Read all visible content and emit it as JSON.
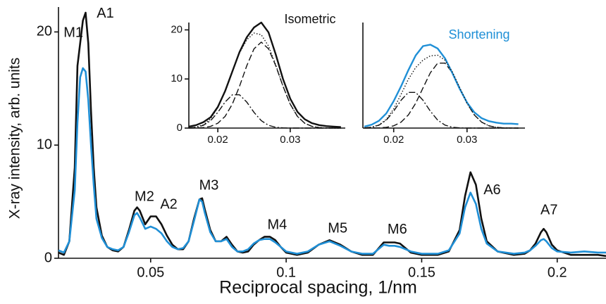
{
  "chart_data": [
    {
      "type": "line",
      "xlabel": "Reciprocal spacing, 1/nm",
      "ylabel": "X-ray intensity, arb. units",
      "xlim": [
        0.016,
        0.218
      ],
      "ylim": [
        0,
        22.2
      ],
      "xticks": [
        0.05,
        0.1,
        0.15,
        0.2
      ],
      "yticks": [
        0,
        10,
        20
      ],
      "x": [
        0.016,
        0.018,
        0.02,
        0.022,
        0.023,
        0.024,
        0.025,
        0.026,
        0.027,
        0.028,
        0.029,
        0.03,
        0.032,
        0.034,
        0.036,
        0.038,
        0.04,
        0.042,
        0.044,
        0.045,
        0.046,
        0.048,
        0.05,
        0.052,
        0.054,
        0.056,
        0.058,
        0.06,
        0.062,
        0.064,
        0.066,
        0.068,
        0.069,
        0.07,
        0.072,
        0.074,
        0.076,
        0.078,
        0.08,
        0.082,
        0.084,
        0.086,
        0.088,
        0.09,
        0.092,
        0.094,
        0.096,
        0.098,
        0.1,
        0.104,
        0.108,
        0.112,
        0.116,
        0.12,
        0.124,
        0.128,
        0.132,
        0.136,
        0.138,
        0.14,
        0.142,
        0.146,
        0.15,
        0.156,
        0.16,
        0.164,
        0.166,
        0.168,
        0.17,
        0.172,
        0.174,
        0.178,
        0.184,
        0.188,
        0.19,
        0.192,
        0.194,
        0.195,
        0.196,
        0.198,
        0.2,
        0.205,
        0.21,
        0.215,
        0.218
      ],
      "series": [
        {
          "color": "#111111",
          "dash": "solid",
          "values": [
            0.5,
            0.3,
            1.5,
            8,
            17,
            19,
            21,
            21.7,
            19,
            13,
            8,
            4.5,
            2,
            1,
            0.7,
            0.6,
            1,
            2.5,
            4.2,
            4.5,
            4.2,
            3,
            3.7,
            3.7,
            3,
            2,
            1.2,
            0.8,
            0.8,
            1.5,
            3.5,
            5.2,
            5.3,
            4.3,
            2.5,
            1.5,
            1.5,
            1.9,
            1.2,
            0.6,
            0.5,
            0.6,
            1.2,
            1.6,
            1.9,
            1.9,
            1.6,
            1,
            0.5,
            0.3,
            0.5,
            1.2,
            1.6,
            1.2,
            0.6,
            0.3,
            0.3,
            1.4,
            1.4,
            1.4,
            1.3,
            0.5,
            0.3,
            0.3,
            0.6,
            2.5,
            5.5,
            7.6,
            6.5,
            3.5,
            1.5,
            0.6,
            0.3,
            0.4,
            0.7,
            1.3,
            2.3,
            2.6,
            2.3,
            1.2,
            0.7,
            0.3,
            0.3,
            0.3,
            0.2
          ]
        },
        {
          "color": "#1f8fd6",
          "dash": "solid",
          "values": [
            0.7,
            0.5,
            1.5,
            6,
            12,
            16,
            16.8,
            16.5,
            14,
            10,
            6.5,
            3.5,
            1.8,
            1,
            0.8,
            0.7,
            1,
            2.3,
            3.8,
            4,
            3.6,
            2.6,
            2.8,
            2.6,
            2.2,
            1.5,
            1,
            0.8,
            0.9,
            1.5,
            3.3,
            5.2,
            5,
            4,
            2.3,
            1.5,
            1.5,
            1.7,
            1,
            0.6,
            0.6,
            0.8,
            1.3,
            1.6,
            1.7,
            1.7,
            1.4,
            1,
            0.6,
            0.4,
            0.6,
            1.2,
            1.5,
            1.1,
            0.6,
            0.4,
            0.4,
            1.2,
            1.1,
            1.1,
            1,
            0.6,
            0.4,
            0.4,
            0.7,
            2.2,
            4.5,
            5.8,
            4.8,
            2.6,
            1.3,
            0.6,
            0.4,
            0.5,
            0.7,
            1.1,
            1.6,
            1.7,
            1.5,
            0.9,
            0.6,
            0.5,
            0.6,
            0.5,
            0.5
          ]
        }
      ],
      "annotations": [
        {
          "text": "M1",
          "x": 0.0215,
          "y": 19.9
        },
        {
          "text": "A1",
          "x": 0.0333,
          "y": 21.6
        },
        {
          "text": "M2",
          "x": 0.0477,
          "y": 5.4
        },
        {
          "text": "A2",
          "x": 0.0567,
          "y": 4.7
        },
        {
          "text": "M3",
          "x": 0.0715,
          "y": 6.4
        },
        {
          "text": "M4",
          "x": 0.0967,
          "y": 2.9
        },
        {
          "text": "M5",
          "x": 0.119,
          "y": 2.6
        },
        {
          "text": "M6",
          "x": 0.141,
          "y": 2.5
        },
        {
          "text": "A6",
          "x": 0.176,
          "y": 6.0
        },
        {
          "text": "A7",
          "x": 0.197,
          "y": 4.2
        }
      ]
    },
    {
      "type": "line",
      "title": "Isometric",
      "title_color": "#111111",
      "xlim": [
        0.016,
        0.0376
      ],
      "ylim": [
        0,
        21.5
      ],
      "xticks": [
        0.02,
        0.03
      ],
      "yticks": [
        0,
        10,
        20
      ],
      "x": [
        0.016,
        0.017,
        0.018,
        0.019,
        0.02,
        0.021,
        0.022,
        0.023,
        0.024,
        0.025,
        0.026,
        0.027,
        0.028,
        0.029,
        0.03,
        0.031,
        0.032,
        0.033,
        0.034,
        0.035,
        0.036,
        0.037
      ],
      "series": [
        {
          "color": "#111111",
          "dash": "dashed",
          "values": [
            0,
            0.03,
            0.1,
            0.35,
            0.98,
            2.37,
            4.87,
            8.52,
            12.7,
            16.15,
            17.5,
            16.15,
            12.7,
            8.52,
            4.87,
            2.37,
            0.98,
            0.35,
            0.1,
            0.03,
            0,
            0
          ]
        },
        {
          "color": "#111111",
          "dash": "dashdot",
          "values": [
            0.04,
            0.16,
            0.56,
            1.51,
            3.2,
            5.29,
            6.78,
            6.78,
            5.29,
            3.2,
            1.51,
            0.56,
            0.16,
            0.04,
            0,
            0,
            0,
            0,
            0,
            0,
            0,
            0
          ]
        },
        {
          "color": "#111111",
          "dash": "dotted",
          "values": [
            0.04,
            0.19,
            0.66,
            1.86,
            4.18,
            7.66,
            11.65,
            15.3,
            17.99,
            19.35,
            19.01,
            16.71,
            12.86,
            8.56,
            4.87,
            2.37,
            0.98,
            0.35,
            0.1,
            0.03,
            0,
            0
          ]
        },
        {
          "color": "#111111",
          "dash": "solid",
          "values": [
            0.3,
            0.6,
            1.2,
            2.2,
            4.3,
            7.5,
            11.5,
            15.5,
            18.5,
            20.5,
            21.5,
            19.5,
            15,
            10,
            6,
            3.3,
            1.8,
            1,
            0.6,
            0.4,
            0.3,
            0.2
          ]
        }
      ]
    },
    {
      "type": "line",
      "title": "Shortening",
      "title_color": "#1f8fd6",
      "xlim": [
        0.0158,
        0.0379
      ],
      "ylim": [
        0,
        21.5
      ],
      "xticks": [
        0.02,
        0.03
      ],
      "x": [
        0.016,
        0.017,
        0.018,
        0.019,
        0.02,
        0.021,
        0.022,
        0.023,
        0.024,
        0.025,
        0.026,
        0.027,
        0.028,
        0.029,
        0.03,
        0.031,
        0.032,
        0.033,
        0.034,
        0.035,
        0.036,
        0.037
      ],
      "series": [
        {
          "color": "#111111",
          "dash": "dashed",
          "values": [
            0,
            0.01,
            0.04,
            0.15,
            0.46,
            1.2,
            2.67,
            5.06,
            8.19,
            11.27,
            13.23,
            13.23,
            11.27,
            8.19,
            5.06,
            2.67,
            1.2,
            0.46,
            0.15,
            0.04,
            0.01,
            0
          ]
        },
        {
          "color": "#111111",
          "dash": "dashdot",
          "values": [
            0.04,
            0.17,
            0.6,
            1.62,
            3.44,
            5.66,
            7.27,
            7.27,
            5.66,
            3.44,
            1.62,
            0.6,
            0.17,
            0.04,
            0,
            0,
            0,
            0,
            0,
            0,
            0,
            0
          ]
        },
        {
          "color": "#1f8fd6",
          "dash": "solid",
          "values": [
            0.3,
            0.7,
            1.5,
            3,
            5.5,
            8.5,
            11.8,
            14.8,
            16.7,
            17,
            16.2,
            14.2,
            11.2,
            8,
            5.2,
            3.2,
            2,
            1.4,
            1.1,
            0.9,
            0.9,
            0.8
          ]
        },
        {
          "color": "#111111",
          "dash": "dotted",
          "values": [
            0.04,
            0.18,
            0.64,
            1.77,
            3.9,
            6.86,
            9.94,
            12.33,
            13.85,
            14.71,
            14.85,
            13.83,
            11.44,
            8.23,
            5.06,
            2.67,
            1.2,
            0.46,
            0.15,
            0.04,
            0.01,
            0
          ]
        }
      ]
    }
  ]
}
